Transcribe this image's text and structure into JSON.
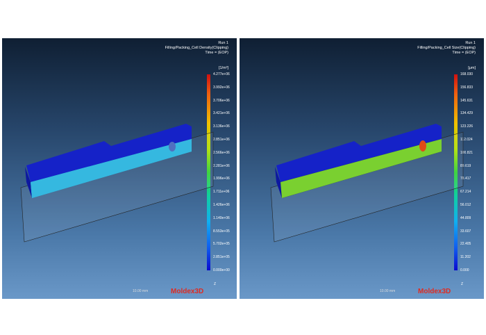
{
  "panels": [
    {
      "run": "Run 1",
      "result": "Filling/Packing_Cell Density(Clipping)",
      "time": "Time = (EOP)",
      "unit": "[1/m³]",
      "legend": [
        "4.277e+06",
        "3.992e+06",
        "3.706e+06",
        "3.421e+06",
        "3.136e+06",
        "2.851e+06",
        "2.566e+06",
        "2.281e+06",
        "1.996e+06",
        "1.711e+06",
        "1.426e+06",
        "1.140e+06",
        "8.553e+05",
        "5.702e+05",
        "2.851e+05",
        "0.000e+00"
      ],
      "scale": "10.00 mm",
      "brand": "Moldex3D",
      "axis": "Z"
    },
    {
      "run": "Run 1",
      "result": "Filling/Packing_Cell Size(Clipping)",
      "time": "Time = (EOP)",
      "unit": "[μm]",
      "legend": [
        "168.030",
        "156.833",
        "145.631",
        "134.429",
        "123.226",
        "112.024",
        "100.821",
        "89.619",
        "78.417",
        "67.214",
        "56.012",
        "44.809",
        "33.607",
        "22.405",
        "11.202",
        "0.000"
      ],
      "scale": "10.00 mm",
      "brand": "Moldex3D",
      "axis": "Z"
    }
  ]
}
